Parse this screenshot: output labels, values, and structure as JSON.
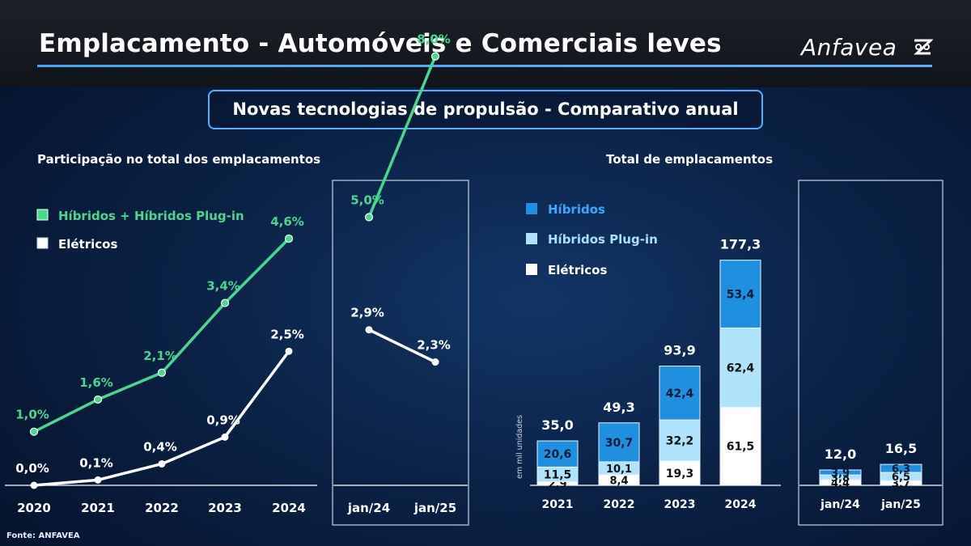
{
  "header": {
    "title": "Emplacamento - Automóveis e Comerciais leves",
    "logo_text": "Anfavea",
    "subtitle": "Novas tecnologias de propulsão - Comparativo anual"
  },
  "footer": {
    "source": "Fonte: ANFAVEA"
  },
  "colors": {
    "hybrid_line": "#47d98b",
    "electric_line": "#ffffff",
    "hibridos": "#1f8fe0",
    "plugin": "#aee3fb",
    "eletricos": "#ffffff",
    "accent_border": "#4fb2ff"
  },
  "chart_data": [
    {
      "type": "line",
      "title": "Participação no total dos emplacamentos",
      "x": [
        "2020",
        "2021",
        "2022",
        "2023",
        "2024"
      ],
      "series": [
        {
          "name": "Híbridos + Híbridos Plug-in",
          "values": [
            1.0,
            1.6,
            2.1,
            3.4,
            4.6
          ],
          "labels": [
            "1,0%",
            "1,6%",
            "2,1%",
            "3,4%",
            "4,6%"
          ]
        },
        {
          "name": "Elétricos",
          "values": [
            0.0,
            0.1,
            0.4,
            0.9,
            2.5
          ],
          "labels": [
            "0,0%",
            "0,1%",
            "0,4%",
            "0,9%",
            "2,5%"
          ]
        }
      ],
      "legend": "top-left"
    },
    {
      "type": "line",
      "x": [
        "jan/24",
        "jan/25"
      ],
      "series": [
        {
          "name": "Híbridos + Híbridos Plug-in",
          "values": [
            5.0,
            8.0
          ],
          "labels": [
            "5,0%",
            "8,0%"
          ]
        },
        {
          "name": "Elétricos",
          "values": [
            2.9,
            2.3
          ],
          "labels": [
            "2,9%",
            "2,3%"
          ]
        }
      ]
    },
    {
      "type": "bar",
      "stacked": true,
      "title": "Total de emplacamentos",
      "ylabel": "em mil unidades",
      "categories": [
        "2021",
        "2022",
        "2023",
        "2024"
      ],
      "series": [
        {
          "name": "Elétricos",
          "values": [
            2.9,
            8.4,
            19.3,
            61.5
          ],
          "labels": [
            "2,9",
            "8,4",
            "19,3",
            "61,5"
          ]
        },
        {
          "name": "Híbridos Plug-in",
          "values": [
            11.5,
            10.1,
            32.2,
            62.4
          ],
          "labels": [
            "11,5",
            "10,1",
            "32,2",
            "62,4"
          ]
        },
        {
          "name": "Híbridos",
          "values": [
            20.6,
            30.7,
            42.4,
            53.4
          ],
          "labels": [
            "20,6",
            "30,7",
            "42,4",
            "53,4"
          ]
        }
      ],
      "totals": [
        35.0,
        49.3,
        93.9,
        177.3
      ],
      "total_labels": [
        "35,0",
        "49,3",
        "93,9",
        "177,3"
      ],
      "legend": "top-left"
    },
    {
      "type": "bar",
      "stacked": true,
      "categories": [
        "jan/24",
        "jan/25"
      ],
      "series": [
        {
          "name": "Elétricos",
          "values": [
            4.4,
            3.7
          ],
          "labels": [
            "4,4",
            "3,7"
          ]
        },
        {
          "name": "Híbridos Plug-in",
          "values": [
            3.8,
            6.5
          ],
          "labels": [
            "3,8",
            "6,5"
          ]
        },
        {
          "name": "Híbridos",
          "values": [
            3.9,
            6.3
          ],
          "labels": [
            "3,9",
            "6,3"
          ]
        }
      ],
      "totals": [
        12.0,
        16.5
      ],
      "total_labels": [
        "12,0",
        "16,5"
      ]
    }
  ]
}
